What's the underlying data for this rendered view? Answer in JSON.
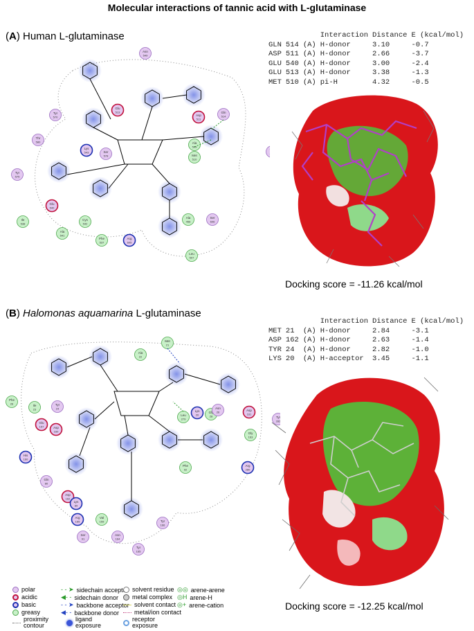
{
  "title": "Molecular interactions of tannic acid with L-glutaminase",
  "panelA": {
    "letter": "A",
    "name": "Human L-glutaminase",
    "table_header": [
      "",
      "",
      "",
      "Interaction",
      "Distance",
      "E (kcal/mol)"
    ],
    "rows": [
      [
        "GLN",
        "514",
        "(A)",
        "H-donor",
        "3.10",
        "-0.7"
      ],
      [
        "ASP",
        "511",
        "(A)",
        "H-donor",
        "2.66",
        "-3.7"
      ],
      [
        "GLU",
        "540",
        "(A)",
        "H-donor",
        "3.00",
        "-2.4"
      ],
      [
        "GLU",
        "513",
        "(A)",
        "H-donor",
        "3.38",
        "-1.3"
      ],
      [
        "MET",
        "510",
        "(A)",
        "pi-H",
        "4.32",
        "-0.5"
      ]
    ],
    "score": "Docking score = -11.26 kcal/mol",
    "residues": [
      {
        "name": "Asn",
        "num": "549",
        "type": "polar"
      },
      {
        "name": "Glu",
        "num": "513",
        "type": "acidic"
      },
      {
        "name": "Asp",
        "num": "511",
        "type": "acidic"
      },
      {
        "name": "Gln",
        "num": "514",
        "type": "polar"
      },
      {
        "name": "Tyr",
        "num": "570",
        "type": "polar"
      },
      {
        "name": "Thr",
        "num": "580",
        "type": "polar"
      },
      {
        "name": "Lys",
        "num": "543",
        "type": "basic"
      },
      {
        "name": "Ser",
        "num": "578",
        "type": "polar"
      },
      {
        "name": "Ala",
        "num": "509",
        "type": "greasy"
      },
      {
        "name": "Met",
        "num": "510",
        "type": "greasy"
      },
      {
        "name": "Thr",
        "num": "486",
        "type": "polar"
      },
      {
        "name": "Tyr",
        "num": "575",
        "type": "polar"
      },
      {
        "name": "Glu",
        "num": "540",
        "type": "acidic"
      },
      {
        "name": "Ile",
        "num": "538",
        "type": "greasy"
      },
      {
        "name": "Cys",
        "num": "542",
        "type": "greasy"
      },
      {
        "name": "Ala",
        "num": "541",
        "type": "greasy"
      },
      {
        "name": "Phe",
        "num": "537",
        "type": "greasy"
      },
      {
        "name": "Arg",
        "num": "605",
        "type": "basic"
      },
      {
        "name": "Ser",
        "num": "606",
        "type": "polar"
      },
      {
        "name": "Ala",
        "num": "456",
        "type": "greasy"
      },
      {
        "name": "Leu",
        "num": "507",
        "type": "greasy"
      }
    ]
  },
  "panelB": {
    "letter": "B",
    "name_italic": "Halomonas aquamarina",
    "name_rest": " L-glutaminase",
    "table_header": [
      "",
      "",
      "",
      "Interaction",
      "Distance",
      "E (kcal/mol)"
    ],
    "rows": [
      [
        "MET",
        "21",
        "(A)",
        "H-donor",
        "2.84",
        "-3.1"
      ],
      [
        "ASP",
        "162",
        "(A)",
        "H-donor",
        "2.63",
        "-1.4"
      ],
      [
        "TYR",
        "24",
        "(A)",
        "H-donor",
        "2.82",
        "-1.0"
      ],
      [
        "LYS",
        "20",
        "(A)",
        "H-acceptor",
        "3.45",
        "-1.1"
      ]
    ],
    "score": "Docking score = -12.25 kcal/mol",
    "residues": [
      {
        "name": "Met",
        "num": "21",
        "type": "greasy"
      },
      {
        "name": "Ala",
        "num": "22",
        "type": "greasy"
      },
      {
        "name": "Phe",
        "num": "26",
        "type": "greasy"
      },
      {
        "name": "Ile",
        "num": "23",
        "type": "greasy"
      },
      {
        "name": "Tyr",
        "num": "24",
        "type": "polar"
      },
      {
        "name": "Glu",
        "num": "157",
        "type": "acidic"
      },
      {
        "name": "Asp",
        "num": "160",
        "type": "acidic"
      },
      {
        "name": "Leu",
        "num": "279",
        "type": "greasy"
      },
      {
        "name": "Lys",
        "num": "20",
        "type": "basic"
      },
      {
        "name": "Gly",
        "num": "28",
        "type": "greasy"
      },
      {
        "name": "Asp",
        "num": "161",
        "type": "acidic"
      },
      {
        "name": "Tyr",
        "num": "282",
        "type": "polar"
      },
      {
        "name": "Gly",
        "num": "163",
        "type": "greasy"
      },
      {
        "name": "His",
        "num": "160",
        "type": "basic"
      },
      {
        "name": "Arg",
        "num": "280",
        "type": "basic"
      },
      {
        "name": "Gln",
        "num": "80",
        "type": "polar"
      },
      {
        "name": "Asp",
        "num": "162",
        "type": "acidic"
      },
      {
        "name": "Lys",
        "num": "89",
        "type": "basic"
      },
      {
        "name": "Phe",
        "num": "92",
        "type": "greasy"
      },
      {
        "name": "Arg",
        "num": "165",
        "type": "basic"
      },
      {
        "name": "Val",
        "num": "159",
        "type": "greasy"
      },
      {
        "name": "Ser",
        "num": "91",
        "type": "polar"
      },
      {
        "name": "Asn",
        "num": "164",
        "type": "polar"
      },
      {
        "name": "Tyr",
        "num": "166",
        "type": "polar"
      },
      {
        "name": "Tyr",
        "num": "165",
        "type": "polar"
      },
      {
        "name": "Asn",
        "num": "26",
        "type": "polar"
      }
    ]
  },
  "legend": {
    "col1": [
      "polar",
      "acidic",
      "basic",
      "greasy",
      "proximity contour"
    ],
    "col2": [
      "sidechain acceptor",
      "sidechain donor",
      "backbone acceptor",
      "backbone donor",
      "ligand exposure"
    ],
    "col3": [
      "solvent residue",
      "metal complex",
      "solvent contact",
      "metal/ion contact",
      "receptor exposure"
    ],
    "col4": [
      "arene-arene",
      "arene-H",
      "arene-cation"
    ]
  },
  "colors": {
    "polar": "#e3c8f0",
    "acidic": "#e3c8f0",
    "basic": "#e3c8f0",
    "greasy": "#c8f0c8",
    "exposure": "#5a6ee0",
    "surface_red": "#d9161b",
    "surface_green": "#4fc23c",
    "ligand": "#b13fc8"
  }
}
